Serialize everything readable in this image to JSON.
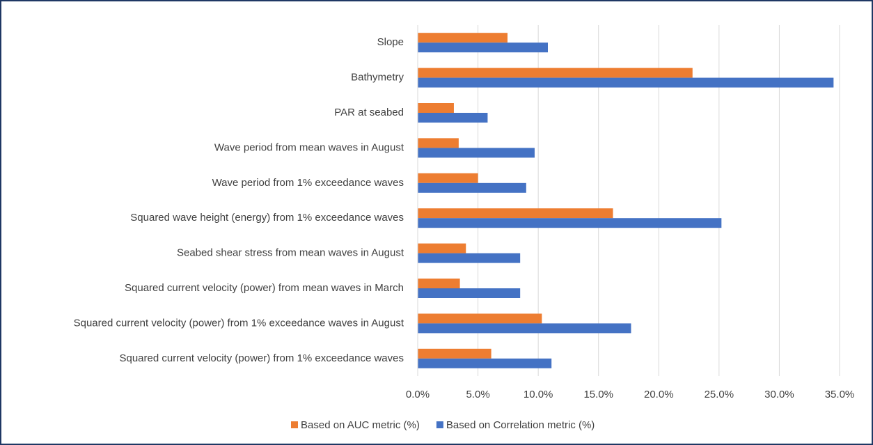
{
  "chart_data": {
    "type": "hbar",
    "categories": [
      "Slope",
      "Bathymetry",
      "PAR at seabed",
      "Wave period from mean waves in August",
      "Wave period from 1% exceedance waves",
      "Squared wave height (energy) from 1% exceedance waves",
      "Seabed shear stress from mean waves in August",
      "Squared current velocity (power) from mean waves in March",
      "Squared current velocity (power) from 1% exceedance waves in August",
      "Squared current velocity (power) from 1% exceedance waves"
    ],
    "series": [
      {
        "name": "Based on AUC metric (%)",
        "color": "#ed7d31",
        "values": [
          7.45,
          22.8,
          3.0,
          3.4,
          5.0,
          16.2,
          4.0,
          3.5,
          10.3,
          6.1
        ]
      },
      {
        "name": "Based on Correlation metric (%)",
        "color": "#4472c4",
        "values": [
          10.8,
          34.5,
          5.8,
          9.7,
          9.0,
          25.2,
          8.5,
          8.5,
          17.7,
          11.1
        ]
      }
    ],
    "xlim": [
      0,
      35
    ],
    "xticks": [
      {
        "value": 0,
        "label": "0.0%"
      },
      {
        "value": 5,
        "label": "5.0%"
      },
      {
        "value": 10,
        "label": "10.0%"
      },
      {
        "value": 15,
        "label": "15.0%"
      },
      {
        "value": 20,
        "label": "20.0%"
      },
      {
        "value": 25,
        "label": "25.0%"
      },
      {
        "value": 30,
        "label": "30.0%"
      },
      {
        "value": 35,
        "label": "35.0%"
      }
    ],
    "grid": true
  }
}
